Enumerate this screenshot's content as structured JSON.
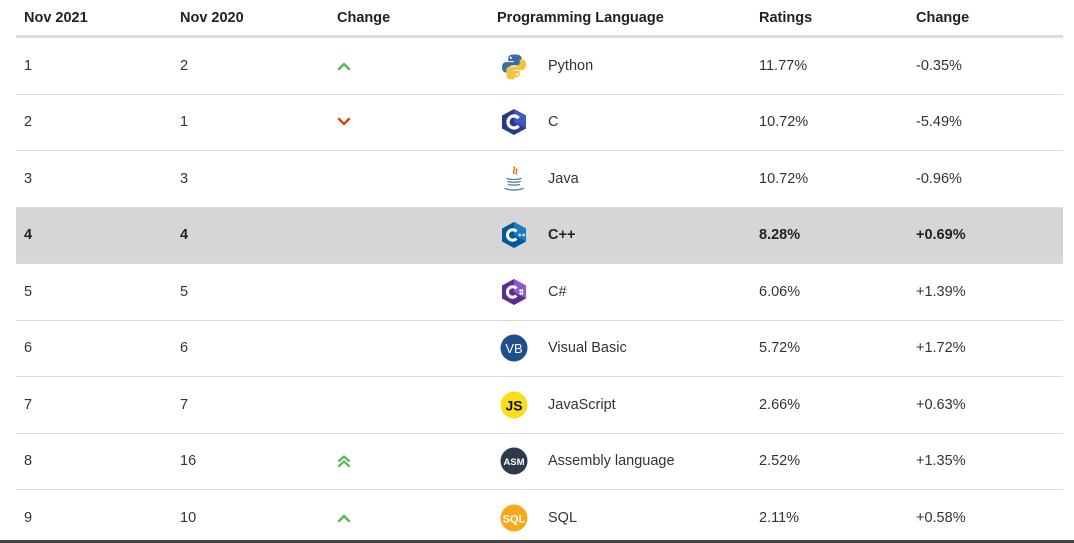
{
  "table": {
    "headers": {
      "rank_current": "Nov 2021",
      "rank_previous": "Nov 2020",
      "change": "Change",
      "language": "Programming Language",
      "ratings": "Ratings",
      "ratings_change": "Change"
    },
    "rows": [
      {
        "current": "1",
        "previous": "2",
        "trend": "up",
        "icon": "python-logo-icon",
        "language": "Python",
        "rating": "11.77%",
        "change": "-0.35%"
      },
      {
        "current": "2",
        "previous": "1",
        "trend": "down",
        "icon": "c-logo-icon",
        "language": "C",
        "rating": "10.72%",
        "change": "-5.49%"
      },
      {
        "current": "3",
        "previous": "3",
        "trend": "none",
        "icon": "java-logo-icon",
        "language": "Java",
        "rating": "10.72%",
        "change": "-0.96%"
      },
      {
        "current": "4",
        "previous": "4",
        "trend": "none",
        "icon": "cpp-logo-icon",
        "language": "C++",
        "rating": "8.28%",
        "change": "+0.69%",
        "highlighted": true
      },
      {
        "current": "5",
        "previous": "5",
        "trend": "none",
        "icon": "csharp-logo-icon",
        "language": "C#",
        "rating": "6.06%",
        "change": "+1.39%"
      },
      {
        "current": "6",
        "previous": "6",
        "trend": "none",
        "icon": "visual-basic-logo-icon",
        "language": "Visual Basic",
        "rating": "5.72%",
        "change": "+1.72%"
      },
      {
        "current": "7",
        "previous": "7",
        "trend": "none",
        "icon": "javascript-logo-icon",
        "language": "JavaScript",
        "rating": "2.66%",
        "change": "+0.63%"
      },
      {
        "current": "8",
        "previous": "16",
        "trend": "double-up",
        "icon": "assembly-logo-icon",
        "language": "Assembly language",
        "rating": "2.52%",
        "change": "+1.35%"
      },
      {
        "current": "9",
        "previous": "10",
        "trend": "up",
        "icon": "sql-logo-icon",
        "language": "SQL",
        "rating": "2.11%",
        "change": "+0.58%"
      }
    ]
  },
  "logos": {
    "vb": "VB",
    "js": "JS",
    "asm": "ASM",
    "sql": "SQL"
  },
  "colors": {
    "trend_up": "#5cb85c",
    "trend_down": "#d9461e",
    "highlight_row": "#d6d6d6"
  }
}
